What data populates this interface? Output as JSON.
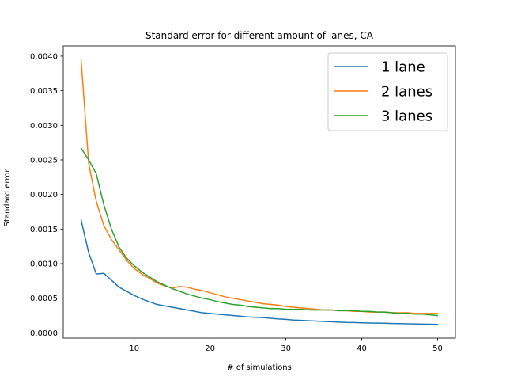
{
  "chart_data": {
    "type": "line",
    "title": "Standard error for different amount of lanes, CA",
    "xlabel": "# of simulations",
    "ylabel": "Standard error",
    "xlim": [
      0.65,
      52.35
    ],
    "ylim": [
      -7.6e-05,
      0.004148
    ],
    "xticks": [
      10,
      20,
      30,
      40,
      50
    ],
    "xtick_labels": [
      "10",
      "20",
      "30",
      "40",
      "50"
    ],
    "yticks": [
      0.0,
      0.0005,
      0.001,
      0.0015,
      0.002,
      0.0025,
      0.003,
      0.0035,
      0.004
    ],
    "ytick_labels": [
      "0.0000",
      "0.0005",
      "0.0010",
      "0.0015",
      "0.0020",
      "0.0025",
      "0.0030",
      "0.0035",
      "0.0040"
    ],
    "grid": false,
    "legend_position": "top-right",
    "x": [
      3,
      4,
      5,
      6,
      7,
      8,
      9,
      10,
      11,
      12,
      13,
      14,
      15,
      16,
      17,
      18,
      19,
      20,
      21,
      22,
      23,
      24,
      25,
      26,
      27,
      28,
      29,
      30,
      31,
      32,
      33,
      34,
      35,
      36,
      37,
      38,
      39,
      40,
      41,
      42,
      43,
      44,
      45,
      46,
      47,
      48,
      49,
      50
    ],
    "series": [
      {
        "name": "1 lane",
        "color": "#1f77b4",
        "values": [
          0.00163,
          0.00116,
          0.00085,
          0.00086,
          0.00076,
          0.00066,
          0.0006,
          0.00054,
          0.00049,
          0.00045,
          0.00041,
          0.00039,
          0.00037,
          0.00035,
          0.00033,
          0.00031,
          0.00029,
          0.00028,
          0.00027,
          0.00026,
          0.00025,
          0.00024,
          0.00023,
          0.000225,
          0.00022,
          0.00021,
          0.0002,
          0.000195,
          0.000185,
          0.00018,
          0.000175,
          0.00017,
          0.000165,
          0.00016,
          0.000155,
          0.00015,
          0.000148,
          0.000145,
          0.000142,
          0.00014,
          0.000138,
          0.000135,
          0.000133,
          0.00013,
          0.000128,
          0.000126,
          0.000124,
          0.000122
        ]
      },
      {
        "name": "2 lanes",
        "color": "#ff7f0e",
        "values": [
          0.00395,
          0.00245,
          0.0019,
          0.00155,
          0.00135,
          0.0012,
          0.00105,
          0.00093,
          0.00085,
          0.00079,
          0.00072,
          0.00068,
          0.00065,
          0.00067,
          0.00066,
          0.00063,
          0.00061,
          0.00058,
          0.00055,
          0.00052,
          0.0005,
          0.00048,
          0.00046,
          0.00044,
          0.00042,
          0.00041,
          0.0004,
          0.00038,
          0.00037,
          0.00036,
          0.00035,
          0.00034,
          0.00033,
          0.00033,
          0.00032,
          0.00032,
          0.00031,
          0.00031,
          0.0003,
          0.0003,
          0.0003,
          0.00029,
          0.00029,
          0.00029,
          0.00028,
          0.00028,
          0.00028,
          0.00028
        ]
      },
      {
        "name": "3 lanes",
        "color": "#2ca02c",
        "values": [
          0.00267,
          0.0025,
          0.0023,
          0.00185,
          0.0015,
          0.00124,
          0.00108,
          0.00097,
          0.00088,
          0.00081,
          0.00074,
          0.00069,
          0.00064,
          0.0006,
          0.00056,
          0.00053,
          0.0005,
          0.00048,
          0.00045,
          0.00043,
          0.00041,
          0.0004,
          0.00038,
          0.00037,
          0.00036,
          0.00035,
          0.00035,
          0.00034,
          0.00034,
          0.00034,
          0.00033,
          0.00033,
          0.00033,
          0.00033,
          0.00032,
          0.00032,
          0.00032,
          0.00031,
          0.00031,
          0.0003,
          0.0003,
          0.00029,
          0.00028,
          0.00028,
          0.00027,
          0.00027,
          0.00026,
          0.00025
        ]
      }
    ]
  }
}
